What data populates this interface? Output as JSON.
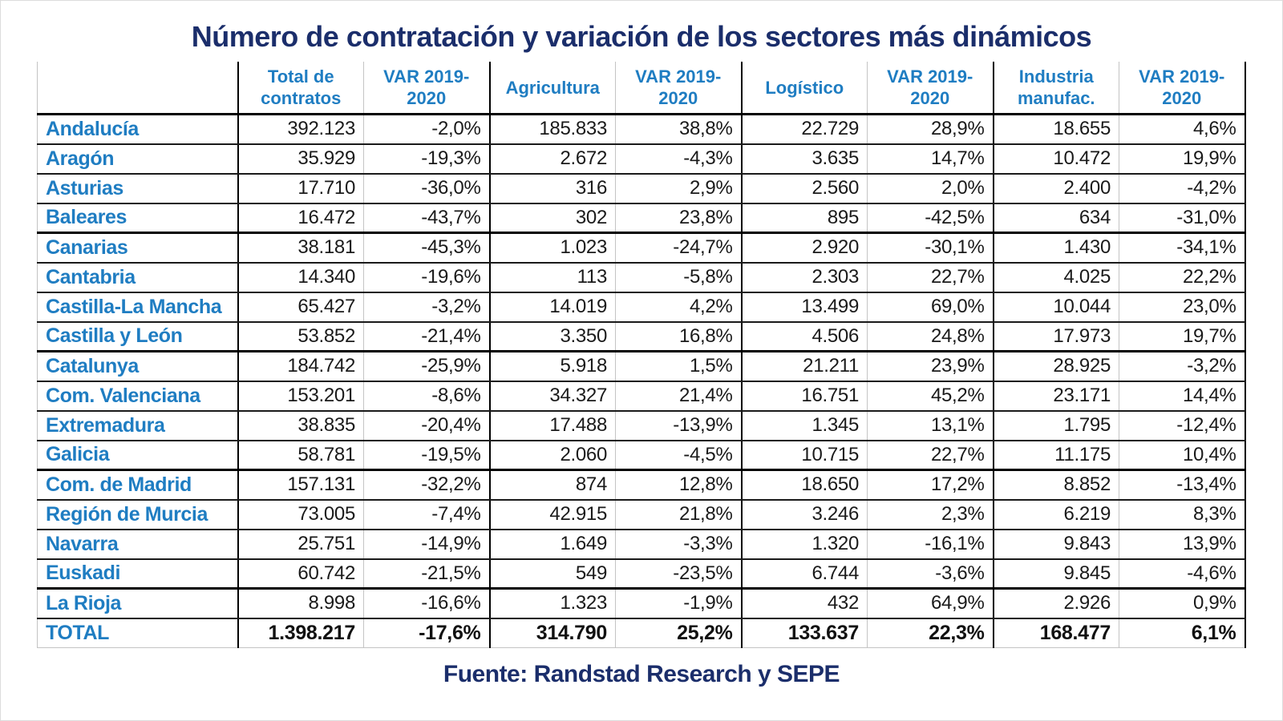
{
  "title": "Número de contratación y variación de los sectores más dinámicos",
  "source": "Fuente: Randstad Research y SEPE",
  "colors": {
    "title_navy": "#1b2e6b",
    "header_blue": "#1f7dc2",
    "data_text": "#1a1a1a",
    "grid_black": "#000000",
    "grid_gray": "#c4c4c4"
  },
  "chart_data": {
    "type": "table",
    "columns": [
      "",
      "Total de contratos",
      "VAR 2019-2020",
      "Agricultura",
      "VAR 2019-2020",
      "Logístico",
      "VAR 2019-2020",
      "Industria manufac.",
      "VAR 2019-2020"
    ],
    "rows": [
      {
        "region": "Andalucía",
        "values": [
          "392.123",
          "-2,0%",
          "185.833",
          "38,8%",
          "22.729",
          "28,9%",
          "18.655",
          "4,6%"
        ],
        "group_end": false,
        "total": false
      },
      {
        "region": "Aragón",
        "values": [
          "35.929",
          "-19,3%",
          "2.672",
          "-4,3%",
          "3.635",
          "14,7%",
          "10.472",
          "19,9%"
        ],
        "group_end": false,
        "total": false
      },
      {
        "region": "Asturias",
        "values": [
          "17.710",
          "-36,0%",
          "316",
          "2,9%",
          "2.560",
          "2,0%",
          "2.400",
          "-4,2%"
        ],
        "group_end": false,
        "total": false
      },
      {
        "region": "Baleares",
        "values": [
          "16.472",
          "-43,7%",
          "302",
          "23,8%",
          "895",
          "-42,5%",
          "634",
          "-31,0%"
        ],
        "group_end": true,
        "total": false
      },
      {
        "region": "Canarias",
        "values": [
          "38.181",
          "-45,3%",
          "1.023",
          "-24,7%",
          "2.920",
          "-30,1%",
          "1.430",
          "-34,1%"
        ],
        "group_end": false,
        "total": false
      },
      {
        "region": "Cantabria",
        "values": [
          "14.340",
          "-19,6%",
          "113",
          "-5,8%",
          "2.303",
          "22,7%",
          "4.025",
          "22,2%"
        ],
        "group_end": false,
        "total": false
      },
      {
        "region": "Castilla-La Mancha",
        "values": [
          "65.427",
          "-3,2%",
          "14.019",
          "4,2%",
          "13.499",
          "69,0%",
          "10.044",
          "23,0%"
        ],
        "group_end": false,
        "total": false
      },
      {
        "region": "Castilla y León",
        "values": [
          "53.852",
          "-21,4%",
          "3.350",
          "16,8%",
          "4.506",
          "24,8%",
          "17.973",
          "19,7%"
        ],
        "group_end": true,
        "total": false
      },
      {
        "region": "Catalunya",
        "values": [
          "184.742",
          "-25,9%",
          "5.918",
          "1,5%",
          "21.211",
          "23,9%",
          "28.925",
          "-3,2%"
        ],
        "group_end": false,
        "total": false
      },
      {
        "region": "Com. Valenciana",
        "values": [
          "153.201",
          "-8,6%",
          "34.327",
          "21,4%",
          "16.751",
          "45,2%",
          "23.171",
          "14,4%"
        ],
        "group_end": false,
        "total": false
      },
      {
        "region": "Extremadura",
        "values": [
          "38.835",
          "-20,4%",
          "17.488",
          "-13,9%",
          "1.345",
          "13,1%",
          "1.795",
          "-12,4%"
        ],
        "group_end": false,
        "total": false
      },
      {
        "region": "Galicia",
        "values": [
          "58.781",
          "-19,5%",
          "2.060",
          "-4,5%",
          "10.715",
          "22,7%",
          "11.175",
          "10,4%"
        ],
        "group_end": true,
        "total": false
      },
      {
        "region": "Com. de Madrid",
        "values": [
          "157.131",
          "-32,2%",
          "874",
          "12,8%",
          "18.650",
          "17,2%",
          "8.852",
          "-13,4%"
        ],
        "group_end": false,
        "total": false
      },
      {
        "region": "Región de Murcia",
        "values": [
          "73.005",
          "-7,4%",
          "42.915",
          "21,8%",
          "3.246",
          "2,3%",
          "6.219",
          "8,3%"
        ],
        "group_end": false,
        "total": false
      },
      {
        "region": "Navarra",
        "values": [
          "25.751",
          "-14,9%",
          "1.649",
          "-3,3%",
          "1.320",
          "-16,1%",
          "9.843",
          "13,9%"
        ],
        "group_end": false,
        "total": false
      },
      {
        "region": "Euskadi",
        "values": [
          "60.742",
          "-21,5%",
          "549",
          "-23,5%",
          "6.744",
          "-3,6%",
          "9.845",
          "-4,6%"
        ],
        "group_end": true,
        "total": false
      },
      {
        "region": "La Rioja",
        "values": [
          "8.998",
          "-16,6%",
          "1.323",
          "-1,9%",
          "432",
          "64,9%",
          "2.926",
          "0,9%"
        ],
        "group_end": false,
        "total": false
      },
      {
        "region": "TOTAL",
        "values": [
          "1.398.217",
          "-17,6%",
          "314.790",
          "25,2%",
          "133.637",
          "22,3%",
          "168.477",
          "6,1%"
        ],
        "group_end": false,
        "total": true
      }
    ]
  }
}
